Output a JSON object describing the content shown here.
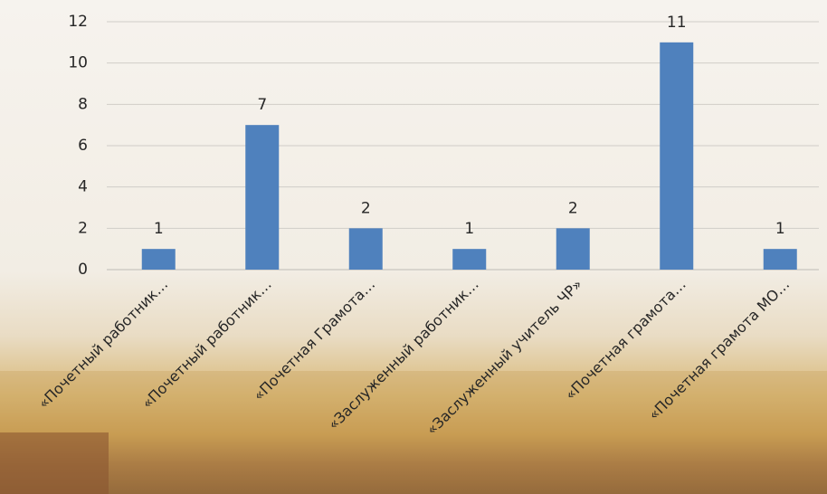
{
  "chart_data": {
    "type": "bar",
    "categories": [
      "«Почетный работник…",
      "«Почетный работник…",
      "«Почетная Грамота…",
      "«Заслуженный работник…",
      "«Заслуженный учитель ЧР»",
      "«Почетная грамота…",
      "«Почетная грамота МО…"
    ],
    "values": [
      1,
      7,
      2,
      1,
      2,
      11,
      1
    ],
    "color": "#4f81bd",
    "ylim": [
      0,
      12
    ],
    "yticks": [
      0,
      2,
      4,
      6,
      8,
      10,
      12
    ],
    "grid": true,
    "data_labels": true
  }
}
